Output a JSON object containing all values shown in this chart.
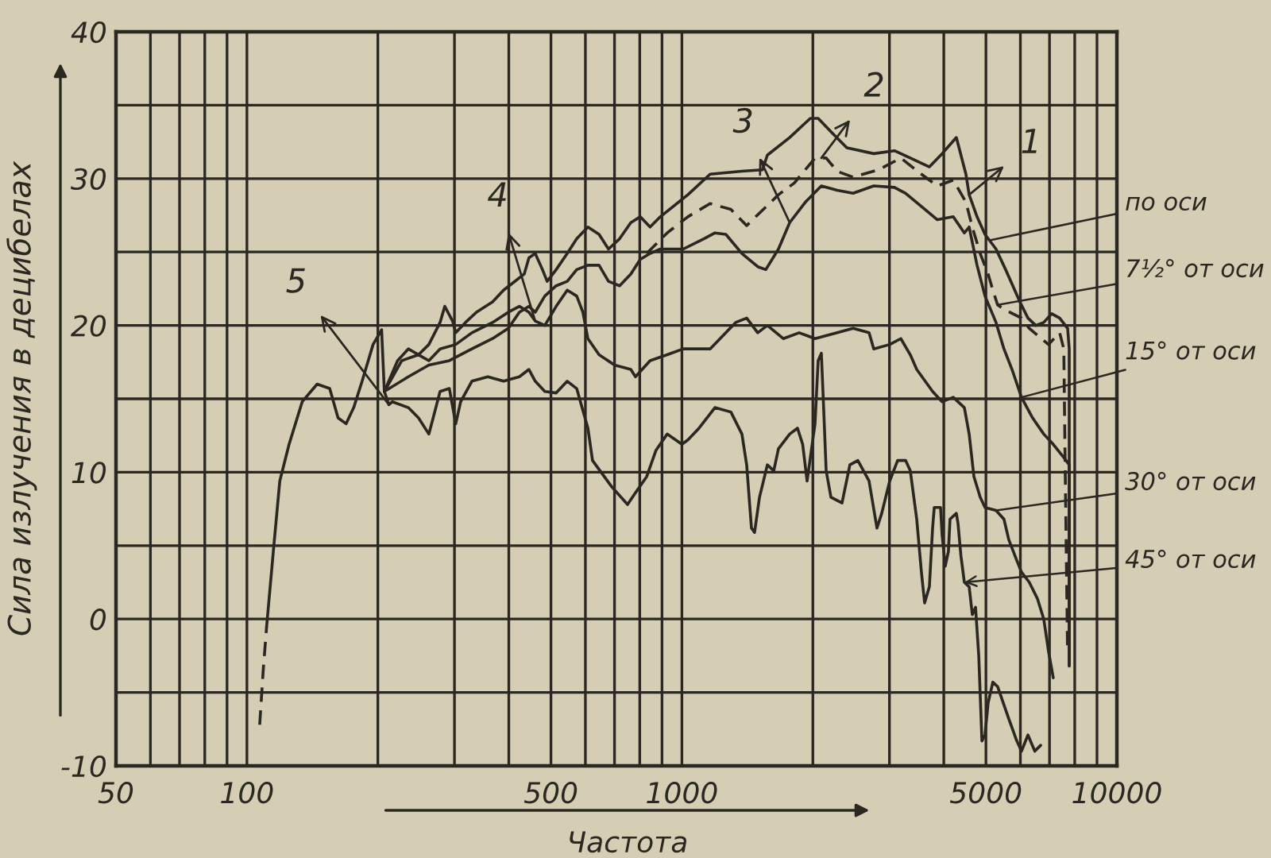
{
  "chart_data": {
    "type": "line",
    "xlabel": "Частота",
    "ylabel": "Сила излучения в децибелах",
    "log": "x",
    "grid": true,
    "xlim": [
      50,
      10000
    ],
    "ylim": [
      -10,
      40
    ],
    "xticks": [
      50,
      {
        "value": 60,
        "label": null
      },
      {
        "value": 70,
        "label": null
      },
      {
        "value": 80,
        "label": null
      },
      {
        "value": 90,
        "label": null
      },
      100,
      {
        "value": 200,
        "label": null
      },
      {
        "value": 300,
        "label": null
      },
      {
        "value": 400,
        "label": null
      },
      500,
      {
        "value": 600,
        "label": null
      },
      {
        "value": 700,
        "label": null
      },
      {
        "value": 800,
        "label": null
      },
      {
        "value": 900,
        "label": null
      },
      1000,
      {
        "value": 2000,
        "label": null
      },
      {
        "value": 3000,
        "label": null
      },
      {
        "value": 4000,
        "label": null
      },
      5000,
      {
        "value": 6000,
        "label": null
      },
      {
        "value": 7000,
        "label": null
      },
      {
        "value": 8000,
        "label": null
      },
      {
        "value": 9000,
        "label": null
      },
      10000
    ],
    "yticks": [
      -10,
      {
        "value": -5,
        "label": null
      },
      0,
      {
        "value": 5,
        "label": null
      },
      10,
      {
        "value": 15,
        "label": null
      },
      20,
      {
        "value": 25,
        "label": null
      },
      30,
      {
        "value": 35,
        "label": null
      },
      40
    ],
    "series": [
      {
        "color": "#2b2721",
        "line_style": "solid",
        "x": [
          207,
          222,
          235,
          248,
          262,
          278,
          285,
          297,
          302,
          318,
          337,
          367,
          389,
          409,
          434,
          445,
          460,
          478,
          490,
          514,
          545,
          573,
          608,
          645,
          678,
          719,
          763,
          802,
          845,
          892,
          1032,
          1161,
          1374,
          1532,
          1572,
          1769,
          1973,
          2057,
          2201,
          2394,
          2761,
          3080,
          3350,
          3706,
          3965,
          4275,
          4497,
          4575,
          4770,
          4975,
          5274,
          5549,
          5985,
          6245,
          6510,
          6790,
          7081,
          7386,
          7705,
          7770,
          7770
        ],
        "values": [
          15.5,
          17.6,
          18.4,
          18.0,
          18.7,
          20.2,
          21.3,
          20.3,
          19.5,
          20.2,
          20.9,
          21.6,
          22.4,
          22.9,
          23.5,
          24.6,
          24.9,
          23.8,
          23.0,
          23.8,
          24.9,
          25.9,
          26.7,
          26.2,
          25.2,
          25.9,
          27.0,
          27.4,
          26.7,
          27.4,
          28.9,
          30.3,
          30.5,
          30.6,
          31.6,
          32.8,
          34.1,
          34.1,
          33.2,
          32.1,
          31.7,
          31.9,
          31.4,
          30.8,
          31.7,
          32.8,
          30.3,
          28.9,
          27.4,
          26.2,
          25.2,
          23.8,
          21.6,
          20.5,
          20.0,
          20.2,
          20.8,
          20.5,
          19.8,
          18.4,
          -3.2
        ]
      },
      {
        "color": "#2b2721",
        "line_style": "dashed",
        "x": [
          830,
          925,
          1032,
          1161,
          1296,
          1409,
          1667,
          1813,
          2023,
          2146,
          2275,
          2475,
          2832,
          3186,
          3553,
          3866,
          4205,
          4497,
          4652,
          4850,
          5059,
          5186,
          5318,
          5500,
          6035,
          6290,
          6963,
          7386,
          7550,
          7600,
          7700
        ],
        "values": [
          24.9,
          26.3,
          27.4,
          28.3,
          27.9,
          26.8,
          28.9,
          29.7,
          31.4,
          31.4,
          30.5,
          30.1,
          30.6,
          31.4,
          30.3,
          29.5,
          29.9,
          28.4,
          26.7,
          24.9,
          23.5,
          22.4,
          21.4,
          21.1,
          20.5,
          19.8,
          18.7,
          19.5,
          18.4,
          11.1,
          -2.0
        ]
      },
      {
        "color": "#2b2721",
        "line_style": "solid",
        "x": [
          207,
          235,
          262,
          292,
          329,
          367,
          399,
          423,
          445,
          460,
          484,
          514,
          545,
          573,
          608,
          645,
          678,
          719,
          763,
          802,
          845,
          892,
          1007,
          1123,
          1191,
          1262,
          1374,
          1494,
          1559,
          1667,
          1769,
          1923,
          2092,
          2275,
          2475,
          2761,
          3080,
          3268,
          3553,
          3866,
          4205,
          4460,
          4575,
          4770,
          4975,
          5274,
          5500,
          5740,
          6035,
          6400,
          6790,
          7140,
          7550,
          7770,
          7770
        ],
        "values": [
          15.5,
          16.5,
          17.3,
          17.6,
          18.4,
          19.1,
          19.8,
          20.9,
          21.3,
          20.9,
          22.0,
          22.7,
          23.0,
          23.8,
          24.1,
          24.1,
          23.0,
          22.7,
          23.5,
          24.5,
          24.9,
          25.2,
          25.2,
          25.9,
          26.3,
          26.2,
          24.9,
          24.0,
          23.8,
          25.2,
          27.0,
          28.4,
          29.5,
          29.2,
          29.0,
          29.5,
          29.4,
          29.0,
          28.1,
          27.2,
          27.4,
          26.3,
          26.7,
          24.1,
          22.0,
          20.2,
          18.4,
          17.0,
          15.1,
          13.7,
          12.6,
          11.9,
          11.0,
          10.5,
          -3.2
        ]
      },
      {
        "color": "#2b2721",
        "line_style": "solid",
        "x": [
          207,
          227,
          248,
          262,
          278,
          302,
          329,
          367,
          399,
          423,
          445,
          460,
          484,
          514,
          545,
          573,
          592,
          608,
          645,
          700,
          763,
          782,
          845,
          925,
          1007,
          1161,
          1329,
          1409,
          1494,
          1572,
          1710,
          1860,
          2023,
          2275,
          2475,
          2693,
          2761,
          3004,
          3186,
          3350,
          3466,
          3770,
          3965,
          4205,
          4460,
          4575,
          4692,
          4850,
          4975,
          5274,
          5500,
          5643,
          5886,
          6035,
          6290,
          6564,
          6790,
          6963,
          7140
        ],
        "values": [
          15.5,
          17.6,
          18.0,
          17.6,
          18.4,
          18.7,
          19.5,
          20.2,
          20.9,
          21.3,
          20.9,
          20.3,
          20.0,
          21.3,
          22.4,
          22.0,
          20.9,
          19.1,
          18.0,
          17.3,
          17.0,
          16.5,
          17.6,
          18.0,
          18.4,
          18.4,
          20.2,
          20.5,
          19.5,
          20.0,
          19.1,
          19.5,
          19.1,
          19.5,
          19.8,
          19.5,
          18.4,
          18.7,
          19.1,
          18.0,
          17.0,
          15.5,
          14.8,
          15.1,
          14.4,
          12.6,
          9.7,
          8.3,
          7.6,
          7.4,
          6.8,
          5.4,
          4.0,
          3.2,
          2.5,
          1.4,
          0.0,
          -2.2,
          -4.0
        ]
      },
      {
        "color": "#2b2721",
        "line_style": "solid",
        "x": [
          111,
          115,
          119,
          125,
          134,
          145,
          155,
          162,
          169,
          176,
          184,
          195,
          204,
          207,
          212,
          216,
          235,
          248,
          262,
          268,
          278,
          292,
          302,
          310,
          329,
          358,
          389,
          423,
          445,
          460,
          484,
          514,
          545,
          573,
          608,
          623,
          690,
          750,
          782,
          830,
          872,
          925,
          1000,
          1032,
          1095,
          1191,
          1296,
          1374,
          1409,
          1445,
          1469,
          1508,
          1572,
          1626,
          1667,
          1769,
          1844,
          1895,
          1940,
          2023,
          2057,
          2092,
          2110,
          2146,
          2201,
          2334,
          2433,
          2538,
          2693,
          2808,
          2880,
          3004,
          3133,
          3268,
          3350,
          3466,
          3553,
          3614,
          3706,
          3770,
          3803,
          3932,
          3965,
          4031,
          4099,
          4134,
          4275,
          4313,
          4380,
          4460,
          4575,
          4652,
          4732,
          4813,
          4895,
          4975,
          5059,
          5186,
          5318,
          5643,
          5886,
          6035,
          6245,
          6476,
          6680
        ],
        "values": [
          -0.5,
          4.6,
          9.4,
          11.9,
          14.8,
          16.0,
          15.7,
          13.7,
          13.3,
          14.4,
          16.2,
          18.7,
          19.7,
          15.5,
          14.6,
          14.8,
          14.4,
          13.7,
          12.6,
          13.7,
          15.5,
          15.7,
          13.3,
          14.8,
          16.2,
          16.5,
          16.2,
          16.5,
          17.0,
          16.2,
          15.5,
          15.4,
          16.2,
          15.7,
          13.0,
          10.8,
          9.0,
          7.8,
          8.6,
          9.7,
          11.5,
          12.6,
          11.9,
          12.2,
          13.0,
          14.4,
          14.1,
          12.6,
          10.5,
          6.2,
          5.9,
          8.3,
          10.5,
          10.1,
          11.6,
          12.6,
          13.0,
          11.9,
          9.4,
          13.3,
          17.6,
          18.1,
          15.5,
          10.1,
          8.3,
          7.9,
          10.5,
          10.8,
          9.4,
          6.2,
          7.2,
          9.4,
          10.8,
          10.8,
          10.1,
          6.8,
          3.2,
          1.1,
          2.2,
          6.2,
          7.6,
          7.6,
          5.7,
          3.6,
          4.6,
          6.8,
          7.2,
          6.5,
          4.3,
          2.5,
          2.2,
          0.3,
          0.8,
          -2.5,
          -8.3,
          -7.9,
          -5.7,
          -4.3,
          -4.6,
          -6.8,
          -8.3,
          -9.0,
          -7.9,
          -9.0,
          -8.6
        ]
      },
      {
        "color": "#2b2721",
        "line_style": "dashed",
        "x": [
          107,
          109,
          111
        ],
        "values": [
          -7.2,
          -3.5,
          -0.5
        ]
      }
    ],
    "annotations": [
      {
        "text": "1",
        "x": 4575,
        "y": 28.9
      },
      {
        "text": "2",
        "x": 2092,
        "y": 31.4
      },
      {
        "text": "3",
        "x": 1769,
        "y": 27.0
      },
      {
        "text": "4",
        "x": 460,
        "y": 20.3
      },
      {
        "text": "5",
        "x": 212,
        "y": 14.6
      },
      {
        "text": "по оси",
        "x": 5100,
        "y": 25.8
      },
      {
        "text": "7½° от оси",
        "x": 5318,
        "y": 21.4
      },
      {
        "text": "15° от оси",
        "x": 6035,
        "y": 15.1
      },
      {
        "text": "30° от оси",
        "x": 5274,
        "y": 7.4
      },
      {
        "text": "45° от оси",
        "x": 4460,
        "y": 2.5
      }
    ]
  }
}
